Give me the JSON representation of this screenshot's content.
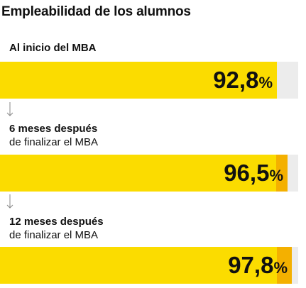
{
  "chart_data": {
    "type": "bar",
    "title": "Empleabilidad de los alumnos",
    "unit": "%",
    "xlim": [
      0,
      100
    ],
    "categories": [
      {
        "line1": "Al inicio del MBA",
        "line2": ""
      },
      {
        "line1": "6 meses después",
        "line2": "de finalizar el MBA"
      },
      {
        "line1": "12 meses después",
        "line2": "de finalizar el MBA"
      }
    ],
    "values": [
      92.8,
      96.5,
      97.8
    ],
    "value_labels": [
      "92,8",
      "96,5",
      "97,8"
    ],
    "colors": {
      "bar": "#fbdc00",
      "bar_edge": "#f4b000",
      "track": "#ececec",
      "text": "#111111",
      "arrow": "#888888"
    }
  }
}
